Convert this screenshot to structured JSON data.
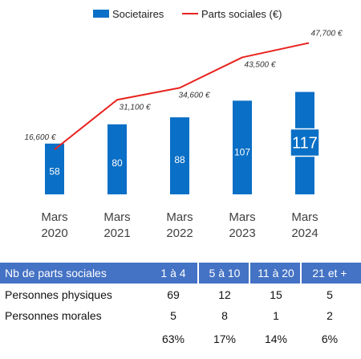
{
  "chart_data": {
    "type": "bar",
    "categories": [
      [
        "Mars",
        "2020"
      ],
      [
        "Mars",
        "2021"
      ],
      [
        "Mars",
        "2022"
      ],
      [
        "Mars",
        "2023"
      ],
      [
        "Mars",
        "2024"
      ]
    ],
    "series": [
      {
        "name": "Societaires",
        "kind": "bar",
        "color": "#0a6fc6",
        "values": [
          58,
          80,
          88,
          107,
          117
        ]
      },
      {
        "name": "Parts sociales (€)",
        "kind": "line",
        "color": "#e8231f",
        "values": [
          16600,
          31100,
          34600,
          43500,
          47700
        ],
        "labels": [
          "16,600 €",
          "31,100 €",
          "34,600 €",
          "43,500 €",
          "47,700 €"
        ]
      }
    ],
    "legend": "top"
  },
  "table": {
    "header": [
      "Nb de parts sociales",
      "1 à 4",
      "5 à 10",
      "11 à 20",
      "21 et +"
    ],
    "rows": [
      [
        "Personnes physiques",
        "69",
        "12",
        "15",
        "5"
      ],
      [
        "Personnes morales",
        "5",
        "8",
        "1",
        "2"
      ],
      [
        "",
        "63%",
        "17%",
        "14%",
        "6%"
      ]
    ]
  }
}
